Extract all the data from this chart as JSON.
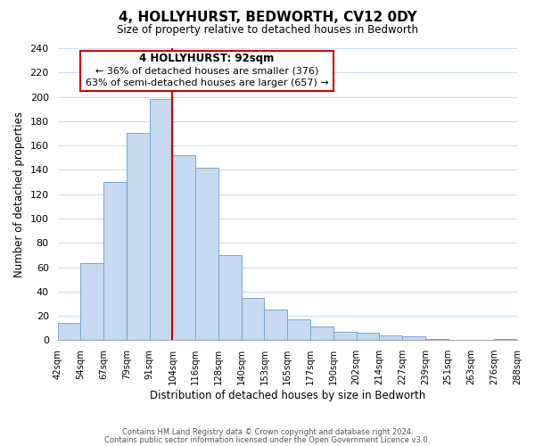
{
  "title": "4, HOLLYHURST, BEDWORTH, CV12 0DY",
  "subtitle": "Size of property relative to detached houses in Bedworth",
  "xlabel": "Distribution of detached houses by size in Bedworth",
  "ylabel": "Number of detached properties",
  "bar_color": "#c5d9f0",
  "bar_edge_color": "#7aa6cc",
  "bin_edge_labels": [
    "42sqm",
    "54sqm",
    "67sqm",
    "79sqm",
    "91sqm",
    "104sqm",
    "116sqm",
    "128sqm",
    "140sqm",
    "153sqm",
    "165sqm",
    "177sqm",
    "190sqm",
    "202sqm",
    "214sqm",
    "227sqm",
    "239sqm",
    "251sqm",
    "263sqm",
    "276sqm",
    "288sqm"
  ],
  "bar_values": [
    14,
    63,
    130,
    170,
    198,
    152,
    142,
    70,
    35,
    25,
    17,
    11,
    7,
    6,
    4,
    3,
    1,
    0,
    0,
    1
  ],
  "vline_pos": 4,
  "vline_color": "#cc0000",
  "annotation_title": "4 HOLLYHURST: 92sqm",
  "annotation_line1": "← 36% of detached houses are smaller (376)",
  "annotation_line2": "63% of semi-detached houses are larger (657) →",
  "annotation_box_color": "#ffffff",
  "annotation_box_edge": "#cc0000",
  "ylim": [
    0,
    240
  ],
  "yticks": [
    0,
    20,
    40,
    60,
    80,
    100,
    120,
    140,
    160,
    180,
    200,
    220,
    240
  ],
  "footer1": "Contains HM Land Registry data © Crown copyright and database right 2024.",
  "footer2": "Contains public sector information licensed under the Open Government Licence v3.0.",
  "background_color": "#ffffff",
  "grid_color": "#ccddee"
}
